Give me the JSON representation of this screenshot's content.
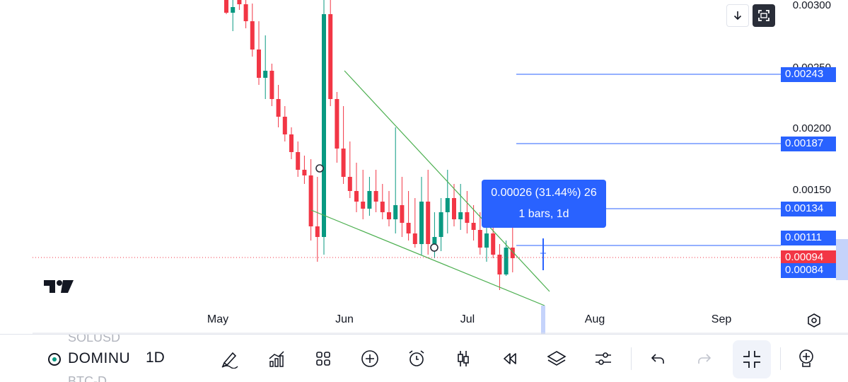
{
  "price_axis": {
    "labels": [
      "0.00300",
      "0.00250",
      "0.00200",
      "0.00150"
    ],
    "hline_badges": [
      "0.00243",
      "0.00187",
      "0.00134",
      "0.00111"
    ],
    "current_price": "0.00094",
    "crosshair_price": "0.00084"
  },
  "time_axis": {
    "labels": [
      "May",
      "Jun",
      "Jul",
      "Aug",
      "Sep"
    ]
  },
  "measure": {
    "line1": "0.00026 (31.44%) 26",
    "line2": "1 bars, 1d"
  },
  "symbol": {
    "ghost_above": "SOLUSD",
    "name": "DOMINU",
    "ghost_below": "BTC-D"
  },
  "interval": "1D",
  "toolbar": {
    "icons": [
      "draw-icon",
      "indicators-icon",
      "templates-icon",
      "add-icon",
      "alert-icon",
      "candles-icon",
      "replay-icon",
      "layers-icon",
      "settings-icon",
      "undo-icon",
      "redo-icon",
      "exit-fullscreen-icon",
      "add-chart-icon"
    ]
  },
  "top_buttons": [
    "scroll-down-icon",
    "fullscreen-icon"
  ],
  "colors": {
    "up": "#089981",
    "down": "#f23645",
    "accent": "#2962ff",
    "trendline": "#4caf50"
  }
}
